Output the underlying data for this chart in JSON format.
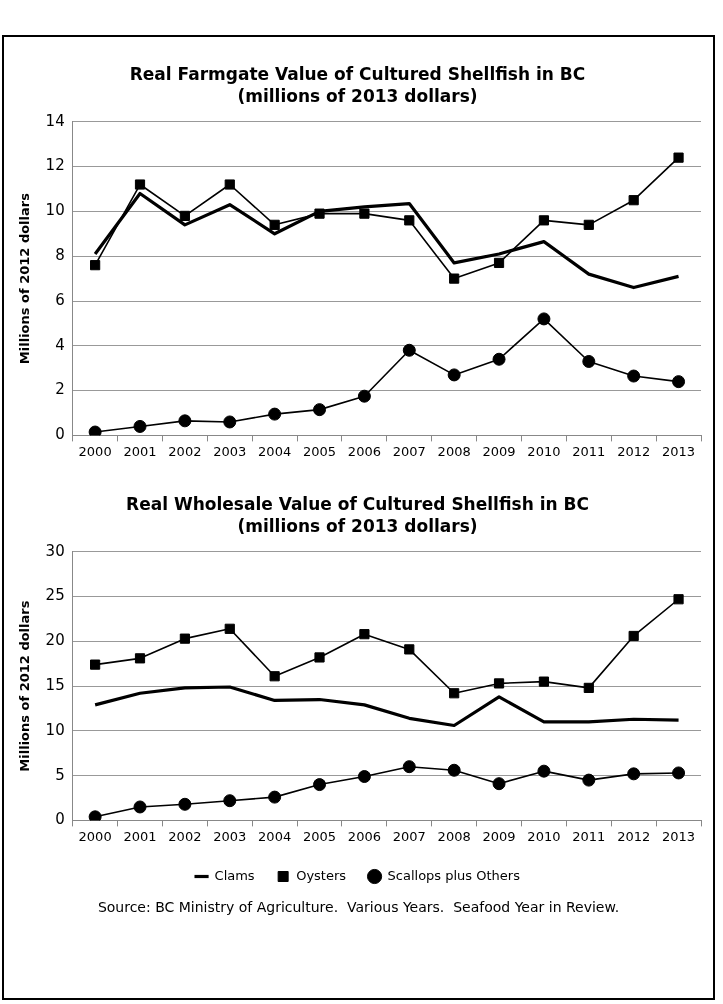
{
  "chart_data": [
    {
      "type": "line",
      "title": "Real Farmgate Value of Cultured Shellfish in BC",
      "subtitle": "(millions of 2013 dollars)",
      "ylabel": "Millions of 2012 dollars",
      "categories": [
        "2000",
        "2001",
        "2002",
        "2003",
        "2004",
        "2005",
        "2006",
        "2007",
        "2008",
        "2009",
        "2010",
        "2011",
        "2012",
        "2013"
      ],
      "series": [
        {
          "color": "#000000",
          "marker": "none",
          "values": [
            8.1,
            10.8,
            9.4,
            10.3,
            9.0,
            10.0,
            10.2,
            10.35,
            7.7,
            8.1,
            8.65,
            7.2,
            6.6,
            7.1
          ]
        },
        {
          "color": "#000000",
          "marker": "square",
          "values": [
            7.6,
            11.2,
            9.8,
            11.2,
            9.4,
            9.9,
            9.9,
            9.6,
            7.0,
            7.7,
            9.6,
            9.4,
            10.5,
            12.4
          ]
        },
        {
          "color": "#000000",
          "marker": "circle",
          "values": [
            0.15,
            0.4,
            0.65,
            0.6,
            0.95,
            1.15,
            1.75,
            3.8,
            2.7,
            3.4,
            5.2,
            3.3,
            2.65,
            2.4
          ]
        }
      ],
      "ylim": [
        0,
        14
      ],
      "yticks": [
        0,
        2,
        4,
        6,
        8,
        10,
        12,
        14
      ],
      "grid": "y",
      "legend": false
    },
    {
      "type": "line",
      "title": "Real Wholesale Value of Cultured Shellfish in BC",
      "subtitle": "(millions of 2013 dollars)",
      "ylabel": "Millions of 2012 dollars",
      "categories": [
        "2000",
        "2001",
        "2002",
        "2003",
        "2004",
        "2005",
        "2006",
        "2007",
        "2008",
        "2009",
        "2010",
        "2011",
        "2012",
        "2013"
      ],
      "series": [
        {
          "name": "Clams",
          "color": "#000000",
          "marker": "none",
          "values": [
            12.9,
            14.2,
            14.8,
            14.9,
            13.4,
            13.5,
            12.9,
            11.4,
            10.6,
            13.8,
            11.0,
            11.0,
            11.3,
            11.2
          ]
        },
        {
          "name": "Oysters",
          "color": "#000000",
          "marker": "square",
          "values": [
            17.4,
            18.1,
            20.3,
            21.4,
            16.1,
            18.2,
            20.8,
            19.1,
            14.2,
            15.3,
            15.5,
            14.8,
            20.6,
            24.7
          ]
        },
        {
          "name": "Scallops plus Others",
          "color": "#000000",
          "marker": "circle",
          "values": [
            0.4,
            1.5,
            1.8,
            2.2,
            2.6,
            4.0,
            4.9,
            6.0,
            5.6,
            4.1,
            5.5,
            4.5,
            5.2,
            5.3
          ]
        }
      ],
      "ylim": [
        0,
        30
      ],
      "yticks": [
        0,
        5,
        10,
        15,
        20,
        25,
        30
      ],
      "grid": "y",
      "legend": "bottom",
      "annotations": [
        "Source: BC Ministry of Agriculture.  Various Years.  Seafood Year in Review."
      ]
    }
  ]
}
